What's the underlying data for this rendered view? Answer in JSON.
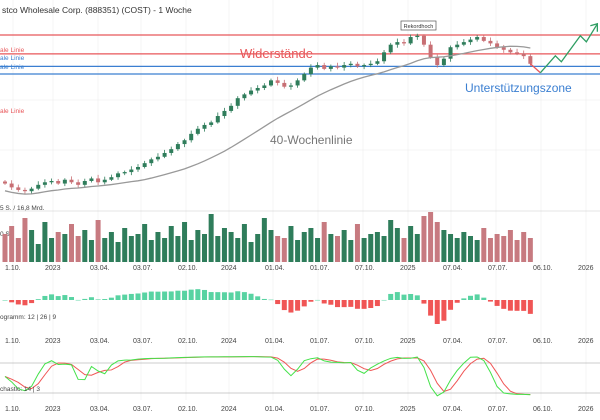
{
  "chart_data": {
    "type": "candlestick",
    "title": "stco Wholesale Corp. (888351) (COST) - 1 Woche",
    "x_tick_labels": [
      "1.10.",
      "2023",
      "03.04.",
      "03.07.",
      "02.10.",
      "2024",
      "01.04.",
      "01.07.",
      "07.10.",
      "2025",
      "07.04.",
      "07.07.",
      "06.10.",
      "2026"
    ],
    "closes": [
      495,
      480,
      470,
      465,
      475,
      490,
      500,
      505,
      495,
      510,
      500,
      490,
      505,
      515,
      500,
      510,
      520,
      535,
      540,
      550,
      560,
      575,
      590,
      600,
      615,
      630,
      650,
      665,
      690,
      710,
      725,
      735,
      760,
      780,
      800,
      830,
      845,
      860,
      870,
      880,
      900,
      890,
      875,
      880,
      900,
      925,
      950,
      960,
      945,
      955,
      950,
      960,
      965,
      955,
      960,
      965,
      975,
      1010,
      1040,
      1050,
      1045,
      1070,
      1075,
      1040,
      990,
      960,
      985,
      1030,
      1040,
      1050,
      1060,
      1070,
      1055,
      1045,
      1030,
      1020,
      1010,
      1005,
      995,
      965
    ],
    "volume_millions": [
      14,
      18,
      12,
      22,
      16,
      9,
      20,
      12,
      15,
      14,
      19,
      13,
      16,
      11,
      21,
      12,
      15,
      10,
      17,
      13,
      14,
      19,
      11,
      15,
      12,
      18,
      13,
      20,
      11,
      16,
      14,
      24,
      13,
      17,
      15,
      12,
      19,
      10,
      14,
      22,
      16,
      13,
      12,
      18,
      11,
      15,
      17,
      12,
      20,
      14,
      13,
      16,
      11,
      19,
      12,
      14,
      15,
      13,
      21,
      17,
      12,
      18,
      14,
      23,
      25,
      20,
      16,
      14,
      12,
      15,
      13,
      11,
      17,
      12,
      14,
      13,
      16,
      11,
      15,
      12
    ],
    "moving_average_label": "40-Wochenlinie",
    "volume_label": "5 S. / 16,8 Mrd.",
    "volume_axis_label": "0 S.",
    "macd_label": "ogramm: 12 | 26 | 9",
    "stochastic_label": "chastic: 14 | 3",
    "levels": [
      {
        "price": 1078,
        "color": "#e8575a",
        "label": ""
      },
      {
        "price": 1004,
        "color": "#e8575a",
        "label": "ale Linie"
      },
      {
        "price": 955,
        "color": "#3b7fd1",
        "label": "ale Linie"
      },
      {
        "price": 925,
        "color": "#3b7fd1",
        "label": "ale Linie"
      }
    ],
    "extra_level_label": "ale Linie",
    "annotations": {
      "resistance": "Widerstände",
      "support": "Unterstützungszone",
      "record_high": "Rekordhoch"
    },
    "colors": {
      "up": "#2f7d5b",
      "down": "#c86f74",
      "vol_up": "#2f7d5b",
      "vol_down": "#c77a80",
      "macd_pos": "#58d3a2",
      "macd_neg": "#f05555",
      "stoch_k": "#44e24a",
      "stoch_d": "#f05555",
      "ma": "#999999",
      "forecast": "#2f9e63"
    }
  }
}
